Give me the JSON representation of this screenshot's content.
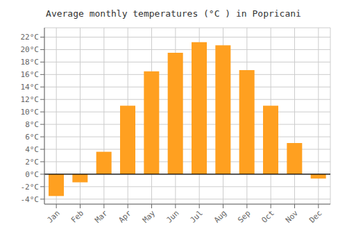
{
  "chart_data": {
    "type": "bar",
    "title": "Average monthly temperatures (°C ) in Popricani",
    "categories": [
      "Jan",
      "Feb",
      "Mar",
      "Apr",
      "May",
      "Jun",
      "Jul",
      "Aug",
      "Sep",
      "Oct",
      "Nov",
      "Dec"
    ],
    "values": [
      -3.5,
      -1.3,
      3.6,
      11.0,
      16.5,
      19.5,
      21.2,
      20.7,
      16.7,
      11.0,
      5.0,
      -0.7
    ],
    "color": "#FFA020",
    "ylim": [
      -4.8,
      23.5
    ],
    "yticks": [
      {
        "value": -4,
        "label": "-4°C"
      },
      {
        "value": -2,
        "label": "-2°C"
      },
      {
        "value": 0,
        "label": "0°C"
      },
      {
        "value": 2,
        "label": "2°C"
      },
      {
        "value": 4,
        "label": "4°C"
      },
      {
        "value": 6,
        "label": "6°C"
      },
      {
        "value": 8,
        "label": "8°C"
      },
      {
        "value": 10,
        "label": "10°C"
      },
      {
        "value": 12,
        "label": "12°C"
      },
      {
        "value": 14,
        "label": "14°C"
      },
      {
        "value": 16,
        "label": "16°C"
      },
      {
        "value": 18,
        "label": "18°C"
      },
      {
        "value": 20,
        "label": "20°C"
      },
      {
        "value": 22,
        "label": "22°C"
      }
    ],
    "grid": true
  }
}
